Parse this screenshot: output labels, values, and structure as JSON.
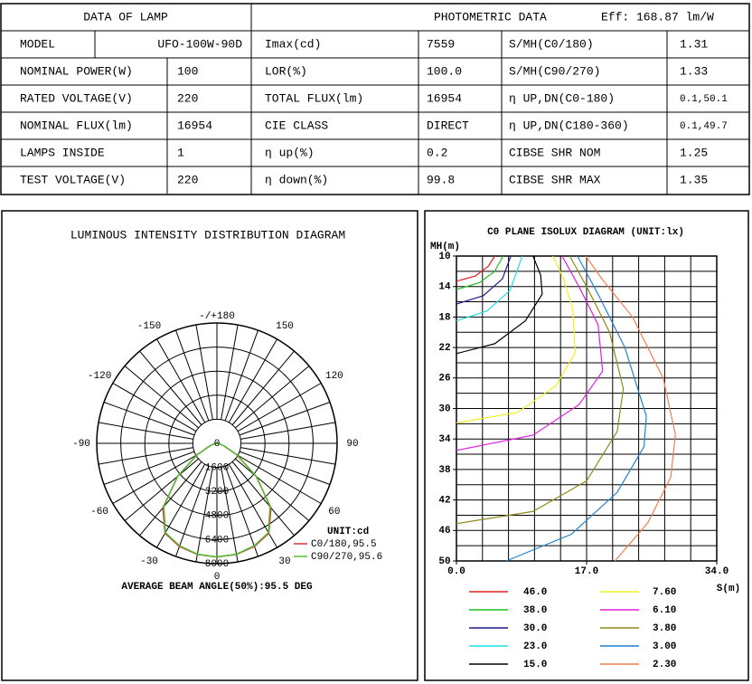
{
  "table": {
    "left_title": "DATA OF LAMP",
    "right_title": "PHOTOMETRIC DATA",
    "efficiency": "Eff: 168.87 lm/W",
    "rows": [
      [
        "MODEL",
        "UFO-100W-90D",
        "Imax(cd)",
        "7559",
        "S/MH(C0/180)",
        "1.31"
      ],
      [
        "NOMINAL POWER(W)",
        "100",
        "LOR(%)",
        "100.0",
        "S/MH(C90/270)",
        "1.33"
      ],
      [
        "RATED VOLTAGE(V)",
        "220",
        "TOTAL FLUX(lm)",
        "16954",
        "η UP,DN(C0-180)",
        "0.1,50.1"
      ],
      [
        "NOMINAL FLUX(lm)",
        "16954",
        "CIE CLASS",
        "DIRECT",
        "η UP,DN(C180-360)",
        "0.1,49.7"
      ],
      [
        "LAMPS INSIDE",
        "1",
        "η up(%)",
        "0.2",
        "CIBSE SHR NOM",
        "1.25"
      ],
      [
        "TEST VOLTAGE(V)",
        "220",
        "η down(%)",
        "99.8",
        "CIBSE SHR MAX",
        "1.35"
      ]
    ]
  },
  "chart_data": [
    {
      "type": "polar",
      "title": "LUMINOUS INTENSITY DISTRIBUTION DIAGRAM",
      "angle_ticks": [
        {
          "value": 180,
          "label": "-/+180"
        },
        -150,
        150,
        -120,
        120,
        -90,
        90,
        -60,
        60,
        -30,
        30,
        0
      ],
      "rlim": [
        0,
        8000
      ],
      "rticks": [
        0,
        1600,
        3200,
        4800,
        6400,
        8000
      ],
      "unit_label": "UNIT:cd",
      "footer": "AVERAGE BEAM ANGLE(50%):95.5 DEG",
      "x": [
        -90,
        -80,
        -70,
        -60,
        -50,
        -40,
        -30,
        -20,
        -10,
        0,
        10,
        20,
        30,
        40,
        50,
        60,
        70,
        80,
        90
      ],
      "series": [
        {
          "name": "C0/180,95.5",
          "color": "#e03030",
          "values": [
            0,
            150,
            500,
            1500,
            3400,
            5600,
            6900,
            7300,
            7500,
            7559,
            7500,
            7300,
            6900,
            5600,
            3400,
            1500,
            500,
            150,
            0
          ]
        },
        {
          "name": "C90/270,95.6",
          "color": "#50c030",
          "values": [
            0,
            160,
            550,
            1550,
            3450,
            5500,
            6850,
            7250,
            7480,
            7559,
            7480,
            7250,
            6850,
            5500,
            3450,
            1550,
            550,
            160,
            0
          ]
        }
      ]
    },
    {
      "type": "contour",
      "title": "C0 PLANE ISOLUX DIAGRAM (UNIT:lx)",
      "x_label": "S(m)",
      "y_label": "MH(m)",
      "xlim": [
        0,
        34
      ],
      "xticks": [
        {
          "value": 0,
          "label": "0.0"
        },
        {
          "value": 17,
          "label": "17.0"
        },
        {
          "value": 34,
          "label": "34.0"
        }
      ],
      "ylim": [
        10,
        50
      ],
      "y_inverted": true,
      "yticks": [
        10,
        14,
        18,
        22,
        26,
        30,
        34,
        38,
        42,
        46,
        50
      ],
      "series": [
        {
          "name": "46.0",
          "color": "#e02020",
          "x": [
            0,
            2.5,
            4.2,
            5.0
          ],
          "values": [
            13.3,
            12.6,
            11.3,
            10
          ]
        },
        {
          "name": "38.0",
          "color": "#20c020",
          "x": [
            0,
            3,
            5,
            6.1
          ],
          "values": [
            14.4,
            13.5,
            12,
            10
          ]
        },
        {
          "name": "30.0",
          "color": "#1a1a8c",
          "x": [
            0,
            3.5,
            6,
            7.1
          ],
          "values": [
            16.3,
            15.2,
            13,
            10
          ]
        },
        {
          "name": "23.0",
          "color": "#20e0e0",
          "x": [
            0,
            4,
            7,
            8.6
          ],
          "values": [
            18.5,
            17.2,
            14.5,
            10
          ]
        },
        {
          "name": "15.0",
          "color": "#000000",
          "x": [
            0,
            5,
            9,
            11.2,
            11,
            10
          ],
          "values": [
            22.8,
            21.5,
            18.5,
            15,
            12.5,
            10
          ]
        },
        {
          "name": "7.60",
          "color": "#f0f020",
          "x": [
            0,
            8,
            13,
            15.5,
            15.2,
            14,
            12.6
          ],
          "values": [
            31.9,
            30.5,
            27,
            22.7,
            17,
            13,
            10
          ]
        },
        {
          "name": "6.10",
          "color": "#e020e0",
          "x": [
            0,
            10,
            16,
            19.1,
            18.5,
            16,
            13.8
          ],
          "values": [
            35.5,
            33.5,
            29.5,
            25.1,
            19,
            14,
            10
          ]
        },
        {
          "name": "3.80",
          "color": "#8c8c1a",
          "x": [
            0,
            10,
            17,
            21,
            21.8,
            20,
            17,
            14.8
          ],
          "values": [
            45.1,
            43.5,
            39.5,
            33,
            27.4,
            20,
            14,
            10
          ]
        },
        {
          "name": "3.00",
          "color": "#2080d0",
          "x": [
            6.5,
            15,
            21,
            24.5,
            24.8,
            22,
            18.5,
            15.8
          ],
          "values": [
            50,
            46.5,
            41,
            35,
            31,
            22,
            15,
            10
          ]
        },
        {
          "name": "2.30",
          "color": "#f08050",
          "x": [
            20.7,
            25,
            28,
            28.6,
            27,
            23,
            19,
            16.9
          ],
          "values": [
            50,
            45,
            39,
            33.4,
            26,
            18,
            13,
            10
          ]
        }
      ]
    }
  ]
}
